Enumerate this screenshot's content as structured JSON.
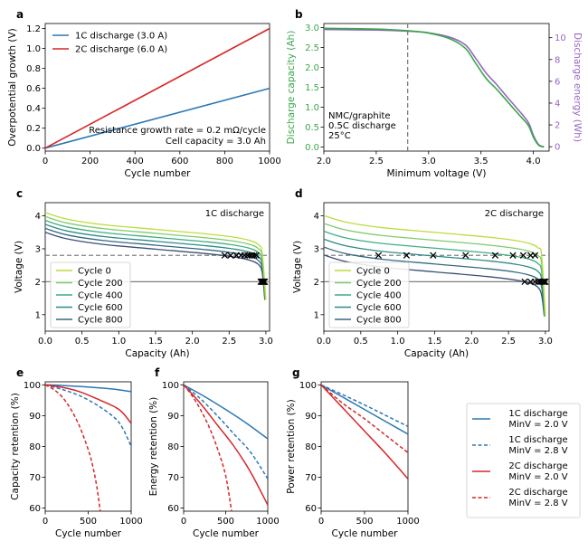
{
  "colors": {
    "blue": "#2c77b3",
    "red": "#d62728",
    "green": "#3aa64a",
    "purple": "#9467bd",
    "gray": "#808080",
    "cycle_colors": [
      "#bcdc3c",
      "#7dcb6b",
      "#3fae82",
      "#2e8a86",
      "#35697f",
      "#3c4f73"
    ]
  },
  "chart_data": [
    {
      "panel": "a",
      "type": "line",
      "xlabel": "Cycle number",
      "ylabel": "Overpotential growth (V)",
      "xlim": [
        0,
        1000
      ],
      "ylim": [
        -0.03,
        1.25
      ],
      "xticks": [
        "0",
        "200",
        "400",
        "600",
        "800",
        "1000"
      ],
      "yticks": [
        "0.0",
        "0.2",
        "0.4",
        "0.6",
        "0.8",
        "1.0",
        "1.2"
      ],
      "series": [
        {
          "name": "1C discharge (3.0 A)",
          "color": "blue",
          "x": [
            0,
            1000
          ],
          "y": [
            0,
            0.6
          ]
        },
        {
          "name": "2C discharge (6.0 A)",
          "color": "red",
          "x": [
            0,
            1000
          ],
          "y": [
            0,
            1.2
          ]
        }
      ],
      "annotations": [
        "Resistance growth rate = 0.2 mΩ/cycle",
        "Cell capacity = 3.0 Ah"
      ]
    },
    {
      "panel": "b",
      "type": "line",
      "xlabel": "Minimum voltage (V)",
      "ylabel": "Discharge capacity (Ah)",
      "ylabel_right": "Discharge energy (Wh)",
      "xlim": [
        2.0,
        4.15
      ],
      "ylim": [
        -0.1,
        3.1
      ],
      "ylim_right": [
        -0.4,
        11.3
      ],
      "xticks": [
        "2.0",
        "2.5",
        "3.0",
        "3.5",
        "4.0"
      ],
      "yticks": [
        "0.0",
        "0.5",
        "1.0",
        "1.5",
        "2.0",
        "2.5",
        "3.0"
      ],
      "yticks_right": [
        "0",
        "2",
        "4",
        "6",
        "8",
        "10"
      ],
      "reference_line_x": 2.8,
      "series": [
        {
          "name": "Discharge capacity",
          "color": "green",
          "x": [
            2.0,
            2.5,
            2.8,
            3.0,
            3.2,
            3.35,
            3.45,
            3.55,
            3.65,
            3.75,
            3.85,
            3.95,
            4.0,
            4.05,
            4.1
          ],
          "y": [
            2.98,
            2.96,
            2.92,
            2.86,
            2.72,
            2.48,
            2.1,
            1.72,
            1.45,
            1.15,
            0.85,
            0.55,
            0.25,
            0.05,
            0.0
          ]
        },
        {
          "name": "Discharge energy",
          "color": "purple",
          "axis": "right",
          "x": [
            2.0,
            2.5,
            2.8,
            3.0,
            3.2,
            3.35,
            3.45,
            3.55,
            3.65,
            3.75,
            3.85,
            3.95,
            4.0,
            4.05,
            4.1
          ],
          "y": [
            10.75,
            10.7,
            10.6,
            10.45,
            10.05,
            9.35,
            8.1,
            6.75,
            5.7,
            4.55,
            3.45,
            2.25,
            1.05,
            0.2,
            0.0
          ]
        }
      ],
      "annotations": [
        "NMC/graphite",
        "0.5C discharge",
        "25°C"
      ]
    },
    {
      "panel": "c",
      "type": "line",
      "title": "1C discharge",
      "xlabel": "Capacity (Ah)",
      "ylabel": "Voltage (V)",
      "xlim": [
        0,
        3.05
      ],
      "ylim": [
        0.5,
        4.4
      ],
      "xticks": [
        "0.0",
        "0.5",
        "1.0",
        "1.5",
        "2.0",
        "2.5",
        "3.0"
      ],
      "yticks": [
        "1",
        "2",
        "3",
        "4"
      ],
      "legend": [
        "Cycle 0",
        "Cycle 200",
        "Cycle 400",
        "Cycle 600",
        "Cycle 800"
      ],
      "cycles": [
        0,
        200,
        400,
        600,
        800,
        1000
      ],
      "current_A": 3.0,
      "ocv_curve": {
        "x": [
          0,
          0.3,
          0.8,
          1.5,
          2.2,
          2.6,
          2.8,
          2.9,
          2.95,
          3.0
        ],
        "y": [
          4.13,
          3.93,
          3.76,
          3.62,
          3.48,
          3.37,
          3.27,
          3.15,
          2.9,
          1.9
        ]
      },
      "hlines": [
        2.8,
        2.0
      ],
      "markers_2v8_x": [
        2.44,
        2.52,
        2.6,
        2.66,
        2.71,
        2.75,
        2.78,
        2.81,
        2.84,
        2.87
      ],
      "markers_2v0_x": [
        2.93,
        2.94,
        2.95,
        2.955,
        2.96,
        2.965,
        2.97,
        2.975,
        2.98,
        2.985
      ]
    },
    {
      "panel": "d",
      "type": "line",
      "title": "2C discharge",
      "xlabel": "Capacity (Ah)",
      "ylabel": "Voltage (V)",
      "xlim": [
        0,
        3.05
      ],
      "ylim": [
        0.5,
        4.4
      ],
      "xticks": [
        "0.0",
        "0.5",
        "1.0",
        "1.5",
        "2.0",
        "2.5",
        "3.0"
      ],
      "yticks": [
        "1",
        "2",
        "3",
        "4"
      ],
      "legend": [
        "Cycle 0",
        "Cycle 200",
        "Cycle 400",
        "Cycle 600",
        "Cycle 800"
      ],
      "cycles": [
        0,
        200,
        400,
        600,
        800,
        1000
      ],
      "current_A": 6.0,
      "hlines": [
        2.8,
        2.0
      ],
      "markers_2v8_x": [
        0.74,
        1.12,
        1.48,
        1.92,
        2.32,
        2.56,
        2.7,
        2.8,
        2.86
      ],
      "markers_2v0_x": [
        2.72,
        2.8,
        2.86,
        2.9,
        2.93,
        2.95,
        2.97,
        2.98,
        2.99,
        3.0
      ]
    },
    {
      "panel": "e",
      "type": "line",
      "xlabel": "Cycle number",
      "ylabel": "Capacity retention (%)",
      "xlim": [
        0,
        1000
      ],
      "ylim": [
        59,
        101
      ],
      "xticks": [
        "0",
        "500",
        "1000"
      ],
      "yticks": [
        "60",
        "70",
        "80",
        "90",
        "100"
      ],
      "series": [
        {
          "name": "1C discharge MinV = 2.0 V",
          "color": "blue",
          "dash": false,
          "x": [
            0,
            200,
            400,
            600,
            800,
            1000
          ],
          "y": [
            100,
            99.8,
            99.5,
            99.1,
            98.6,
            97.8
          ]
        },
        {
          "name": "1C discharge MinV = 2.8 V",
          "color": "blue",
          "dash": true,
          "x": [
            0,
            200,
            400,
            600,
            800,
            900,
            1000
          ],
          "y": [
            100,
            98.5,
            96.5,
            93.5,
            89.5,
            86.0,
            80.0
          ]
        },
        {
          "name": "2C discharge MinV = 2.0 V",
          "color": "red",
          "dash": false,
          "x": [
            0,
            200,
            400,
            600,
            800,
            900,
            1000
          ],
          "y": [
            100,
            99.2,
            97.8,
            95.5,
            93.0,
            91.0,
            87.5
          ]
        },
        {
          "name": "2C discharge MinV = 2.8 V",
          "color": "red",
          "dash": true,
          "x": [
            0,
            100,
            200,
            300,
            400,
            500,
            550,
            600,
            640
          ],
          "y": [
            100,
            98.5,
            96,
            92,
            86.5,
            79,
            74,
            67,
            59
          ]
        }
      ]
    },
    {
      "panel": "f",
      "type": "line",
      "xlabel": "Cycle number",
      "ylabel": "Energy retention (%)",
      "xlim": [
        0,
        1000
      ],
      "ylim": [
        59,
        101
      ],
      "xticks": [
        "0",
        "500",
        "1000"
      ],
      "yticks": [
        "60",
        "70",
        "80",
        "90",
        "100"
      ],
      "series": [
        {
          "name": "1C discharge MinV = 2.0 V",
          "color": "blue",
          "dash": false,
          "x": [
            0,
            250,
            500,
            750,
            1000
          ],
          "y": [
            100,
            96.2,
            92.0,
            87.5,
            82.5
          ]
        },
        {
          "name": "1C discharge MinV = 2.8 V",
          "color": "blue",
          "dash": true,
          "x": [
            0,
            200,
            400,
            600,
            800,
            1000
          ],
          "y": [
            100,
            95.5,
            90.0,
            84.0,
            78.0,
            69.5
          ]
        },
        {
          "name": "2C discharge MinV = 2.0 V",
          "color": "red",
          "dash": false,
          "x": [
            0,
            200,
            400,
            600,
            800,
            1000
          ],
          "y": [
            100,
            94.0,
            87.0,
            80.0,
            71.5,
            61.0
          ]
        },
        {
          "name": "2C discharge MinV = 2.8 V",
          "color": "red",
          "dash": true,
          "x": [
            0,
            100,
            200,
            300,
            400,
            500,
            570
          ],
          "y": [
            100,
            96.5,
            92,
            86.5,
            79.5,
            70.5,
            59
          ]
        }
      ]
    },
    {
      "panel": "g",
      "type": "line",
      "xlabel": "Cycle number",
      "ylabel": "Power retention (%)",
      "xlim": [
        0,
        1000
      ],
      "ylim": [
        59,
        101
      ],
      "xticks": [
        "0",
        "500",
        "1000"
      ],
      "yticks": [
        "60",
        "70",
        "80",
        "90",
        "100"
      ],
      "series": [
        {
          "name": "1C discharge MinV = 2.0 V",
          "color": "blue",
          "dash": false,
          "x": [
            0,
            250,
            500,
            750,
            1000
          ],
          "y": [
            100,
            96.0,
            92.0,
            88.0,
            84.0
          ]
        },
        {
          "name": "1C discharge MinV = 2.8 V",
          "color": "blue",
          "dash": true,
          "x": [
            0,
            250,
            500,
            750,
            1000
          ],
          "y": [
            100,
            96.8,
            93.5,
            90.0,
            86.5
          ]
        },
        {
          "name": "2C discharge MinV = 2.0 V",
          "color": "red",
          "dash": false,
          "x": [
            0,
            250,
            500,
            750,
            1000
          ],
          "y": [
            100,
            92.5,
            85.0,
            77.5,
            69.5
          ]
        },
        {
          "name": "2C discharge MinV = 2.8 V",
          "color": "red",
          "dash": true,
          "x": [
            0,
            250,
            500,
            750,
            1000
          ],
          "y": [
            100,
            94.0,
            89.0,
            83.5,
            78.0
          ]
        }
      ]
    }
  ],
  "shared_legend": [
    {
      "line1": "1C discharge",
      "line2": "MinV = 2.0 V",
      "color": "blue",
      "dash": false
    },
    {
      "line1": "1C discharge",
      "line2": "MinV = 2.8 V",
      "color": "blue",
      "dash": true
    },
    {
      "line1": "2C discharge",
      "line2": "MinV = 2.0 V",
      "color": "red",
      "dash": false
    },
    {
      "line1": "2C discharge",
      "line2": "MinV = 2.8 V",
      "color": "red",
      "dash": true
    }
  ]
}
